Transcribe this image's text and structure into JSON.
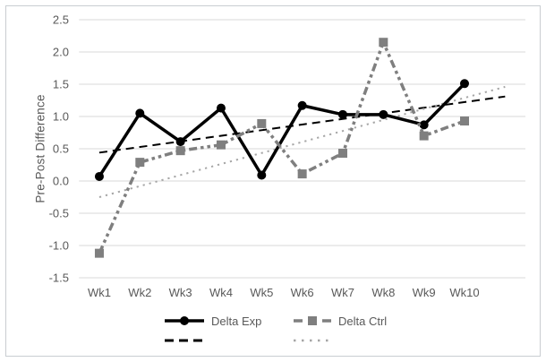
{
  "chart_data": {
    "type": "line",
    "title": "",
    "xlabel": "",
    "ylabel": "Pre-Post Difference",
    "categories": [
      "Wk1",
      "Wk2",
      "Wk3",
      "Wk4",
      "Wk5",
      "Wk6",
      "Wk7",
      "Wk8",
      "Wk9",
      "Wk10"
    ],
    "series": [
      {
        "name": "Delta Exp",
        "color": "#000000",
        "marker": "circle",
        "line_style": "solid",
        "values": [
          0.07,
          1.05,
          0.61,
          1.13,
          0.09,
          1.17,
          1.03,
          1.03,
          0.87,
          1.51
        ]
      },
      {
        "name": "Delta Ctrl",
        "color": "#7f7f7f",
        "marker": "square",
        "line_style": "dash-dot-dot",
        "values": [
          -1.12,
          0.29,
          0.47,
          0.56,
          0.89,
          0.11,
          0.43,
          2.15,
          0.7,
          0.93
        ]
      }
    ],
    "trendlines": [
      {
        "for_series": "Delta Exp",
        "style": "dashed",
        "color": "#000000",
        "start_value": 0.44,
        "end_value": 1.31
      },
      {
        "for_series": "Delta Ctrl",
        "style": "dotted",
        "color": "#a6a6a6",
        "start_value": -0.25,
        "end_value": 1.46
      }
    ],
    "ylim": [
      -1.5,
      2.5
    ],
    "ytick_step": 0.5,
    "ytick_labels": [
      "-1.5",
      "-1.0",
      "-0.5",
      "0.0",
      "0.5",
      "1.0",
      "1.5",
      "2.0",
      "2.5"
    ],
    "grid": true,
    "legend_position": "bottom"
  },
  "colors": {
    "grid": "#d9d9d9",
    "axis_text": "#595959",
    "frame_border": "#c9cdd1",
    "background": "#ffffff"
  }
}
